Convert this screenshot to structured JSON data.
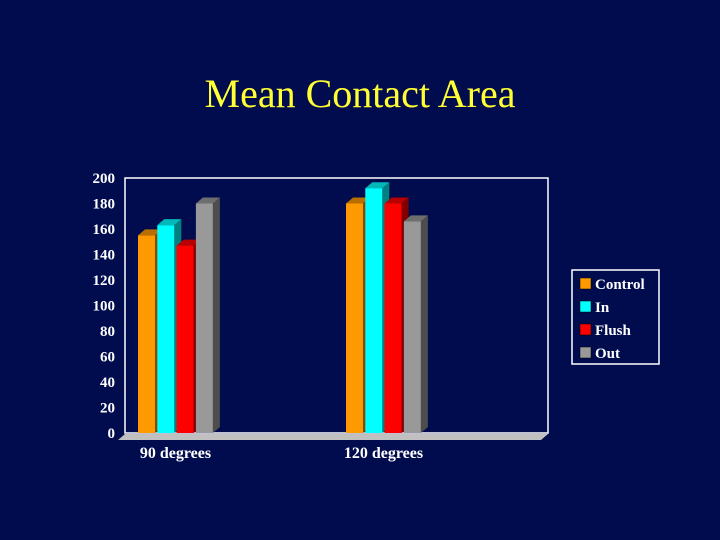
{
  "title": "Mean Contact Area",
  "colors": {
    "background": "#000c4e",
    "title": "#ffff33",
    "text": "#ffffff",
    "plot_border": "#ffffff",
    "floor": "#c0c0c0"
  },
  "chart_data": {
    "type": "bar",
    "title": "Mean Contact Area",
    "categories": [
      "90 degrees",
      "120 degrees"
    ],
    "series": [
      {
        "name": "Control",
        "color": "#ff9900",
        "values": [
          155,
          180
        ]
      },
      {
        "name": "In",
        "color": "#00ffff",
        "values": [
          163,
          192
        ]
      },
      {
        "name": "Flush",
        "color": "#ff0000",
        "values": [
          147,
          180
        ]
      },
      {
        "name": "Out",
        "color": "#999999",
        "values": [
          180,
          166
        ]
      }
    ],
    "ylim": [
      0,
      200
    ],
    "yticks": [
      "0",
      "20",
      "40",
      "60",
      "80",
      "100",
      "120",
      "140",
      "160",
      "180",
      "200"
    ],
    "xlabel": "",
    "ylabel": "",
    "grid": false,
    "legend_position": "right",
    "style": "3d-bar"
  }
}
